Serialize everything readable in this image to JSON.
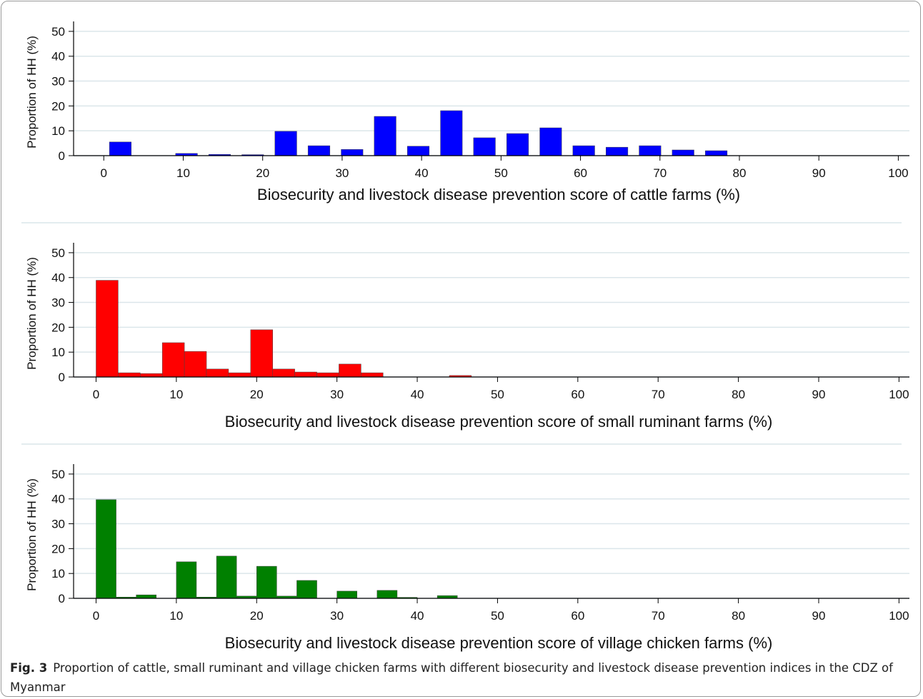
{
  "chart_data": [
    {
      "type": "histogram",
      "xlabel": "Biosecurity and livestock disease prevention score of cattle farms (%)",
      "ylabel": "Proportion of HH (%)",
      "bins": [
        0,
        4.17,
        8.33,
        12.5,
        16.67,
        20.83,
        25,
        29.17,
        33.33,
        37.5,
        41.67,
        45.83,
        50,
        54.17,
        58.33,
        62.5,
        66.67,
        70.83,
        75,
        79.17
      ],
      "values": [
        5.5,
        0,
        0.9,
        0.5,
        0.4,
        9.8,
        4.0,
        2.5,
        15.8,
        3.8,
        18.1,
        7.2,
        8.9,
        11.2,
        4.0,
        3.4,
        4.0,
        2.3,
        2.0
      ],
      "color": "#0000ff",
      "bar_gap": true,
      "xlim": [
        -3.8,
        101.4
      ],
      "xticks": [
        0,
        10,
        20,
        30,
        40,
        50,
        60,
        70,
        80,
        90,
        100
      ],
      "ylim": [
        0,
        54
      ],
      "yticks": [
        0,
        10,
        20,
        30,
        40,
        50
      ],
      "grid": true
    },
    {
      "type": "histogram",
      "xlabel": "Biosecurity and livestock disease prevention score of small ruminant farms (%)",
      "ylabel": "Proportion of HH (%)",
      "bins": [
        0,
        2.75,
        5.5,
        8.25,
        11,
        13.75,
        16.5,
        19.25,
        22,
        24.75,
        27.5,
        30.25,
        33,
        35.75,
        38.5,
        41.25,
        44,
        46.75
      ],
      "values": [
        38.9,
        1.7,
        1.4,
        13.8,
        10.3,
        3.2,
        1.7,
        19.0,
        3.2,
        2.0,
        1.7,
        5.2,
        1.7,
        0,
        0,
        0,
        0.6
      ],
      "color": "#ff0000",
      "bar_gap": false,
      "xlim": [
        -2.8,
        101.3
      ],
      "xticks": [
        0,
        10,
        20,
        30,
        40,
        50,
        60,
        70,
        80,
        90,
        100
      ],
      "ylim": [
        0,
        54
      ],
      "yticks": [
        0,
        10,
        20,
        30,
        40,
        50
      ],
      "grid": true
    },
    {
      "type": "histogram",
      "xlabel": "Biosecurity and livestock disease prevention score of village chicken farms (%)",
      "ylabel": "Proportion of HH (%)",
      "bins": [
        0,
        2.5,
        5,
        7.5,
        10,
        12.5,
        15,
        17.5,
        20,
        22.5,
        25,
        27.5,
        30,
        32.5,
        35,
        37.5,
        40,
        42.5,
        45
      ],
      "values": [
        39.7,
        0.5,
        1.4,
        0,
        14.7,
        0.5,
        17.0,
        0.9,
        12.9,
        0.9,
        7.2,
        0,
        2.9,
        0,
        3.2,
        0.4,
        0,
        1.1
      ],
      "color": "#008000",
      "bar_gap": false,
      "xlim": [
        -2.8,
        101.3
      ],
      "xticks": [
        0,
        10,
        20,
        30,
        40,
        50,
        60,
        70,
        80,
        90,
        100
      ],
      "ylim": [
        0,
        54
      ],
      "yticks": [
        0,
        10,
        20,
        30,
        40,
        50
      ],
      "grid": true
    }
  ],
  "caption": {
    "label": "Fig. 3",
    "text": "Proportion of cattle, small ruminant and village chicken farms with different biosecurity and livestock disease prevention indices in the CDZ of Myanmar"
  }
}
